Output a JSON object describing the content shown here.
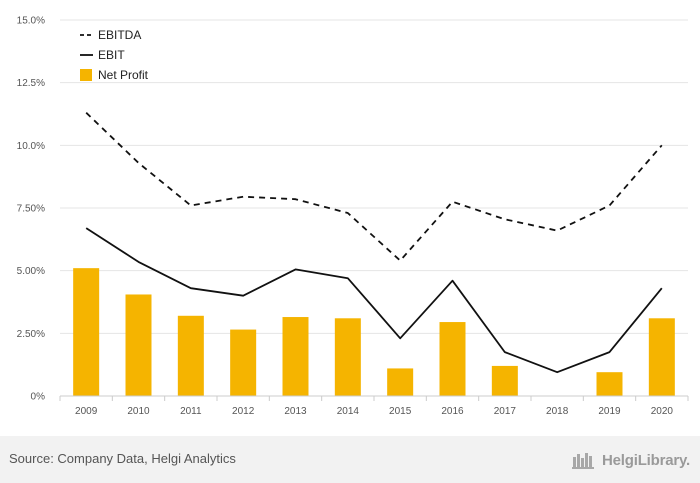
{
  "chart_data": {
    "type": "bar+line",
    "categories": [
      "2009",
      "2010",
      "2011",
      "2012",
      "2013",
      "2014",
      "2015",
      "2016",
      "2017",
      "2018",
      "2019",
      "2020"
    ],
    "y_ticks": [
      "0%",
      "2.50%",
      "5.00%",
      "7.50%",
      "10.0%",
      "12.5%",
      "15.0%"
    ],
    "ylim": [
      0,
      15
    ],
    "grid": "horizontal",
    "legend_position": "top-left",
    "series": [
      {
        "name": "EBITDA",
        "kind": "line",
        "style": "dashed",
        "color": "#111111",
        "values": [
          11.3,
          9.3,
          7.6,
          7.95,
          7.85,
          7.3,
          5.4,
          7.75,
          7.05,
          6.6,
          7.6,
          10.0
        ]
      },
      {
        "name": "EBIT",
        "kind": "line",
        "style": "solid",
        "color": "#111111",
        "values": [
          6.7,
          5.35,
          4.3,
          4.0,
          5.05,
          4.7,
          2.3,
          4.6,
          1.75,
          0.95,
          1.75,
          4.3
        ]
      },
      {
        "name": "Net Profit",
        "kind": "bar",
        "color": "#f5b400",
        "values": [
          5.1,
          4.05,
          3.2,
          2.65,
          3.15,
          3.1,
          1.1,
          2.95,
          1.2,
          0.0,
          0.95,
          3.1
        ]
      }
    ]
  },
  "footer": {
    "source": "Source: Company Data, Helgi Analytics",
    "brand": "HelgiLibrary."
  }
}
